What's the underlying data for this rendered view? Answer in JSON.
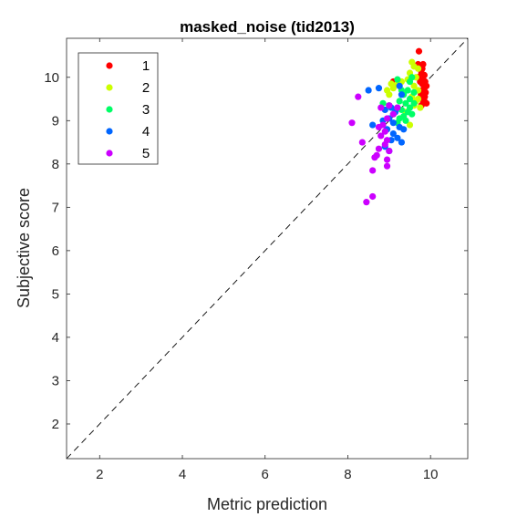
{
  "chart_data": {
    "type": "scatter",
    "title": "masked_noise (tid2013)",
    "xlabel": "Metric prediction",
    "ylabel": "Subjective score",
    "xlim": [
      1.2,
      10.9
    ],
    "ylim": [
      1.2,
      10.9
    ],
    "xticks": [
      2,
      4,
      6,
      8,
      10
    ],
    "yticks": [
      2,
      3,
      4,
      5,
      6,
      7,
      8,
      9,
      10
    ],
    "grid": false,
    "legend_position": "top-left",
    "reference_line": "y = x (dashed)",
    "series": [
      {
        "name": "1",
        "color": "#ff0000",
        "points": [
          [
            9.72,
            10.6
          ],
          [
            9.7,
            10.3
          ],
          [
            9.75,
            10.25
          ],
          [
            9.8,
            10.2
          ],
          [
            9.78,
            10.1
          ],
          [
            9.85,
            10.05
          ],
          [
            9.82,
            9.95
          ],
          [
            9.87,
            9.9
          ],
          [
            9.8,
            9.85
          ],
          [
            9.9,
            9.8
          ],
          [
            9.85,
            9.75
          ],
          [
            9.8,
            9.7
          ],
          [
            9.88,
            9.65
          ],
          [
            9.83,
            9.6
          ],
          [
            9.86,
            9.55
          ],
          [
            9.8,
            9.5
          ],
          [
            9.85,
            9.45
          ],
          [
            9.82,
            9.4
          ],
          [
            9.78,
            9.35
          ],
          [
            9.9,
            9.4
          ],
          [
            9.75,
            9.9
          ],
          [
            9.7,
            10.0
          ],
          [
            9.82,
            10.3
          ],
          [
            9.1,
            9.9
          ],
          [
            9.77,
            9.6
          ]
        ]
      },
      {
        "name": "2",
        "color": "#ccff00",
        "points": [
          [
            9.55,
            10.35
          ],
          [
            9.6,
            10.25
          ],
          [
            9.7,
            10.2
          ],
          [
            9.5,
            10.1
          ],
          [
            9.65,
            10.0
          ],
          [
            9.45,
            9.95
          ],
          [
            9.3,
            9.9
          ],
          [
            9.2,
            9.85
          ],
          [
            9.05,
            9.85
          ],
          [
            9.1,
            9.75
          ],
          [
            8.95,
            9.7
          ],
          [
            9.0,
            9.6
          ],
          [
            9.6,
            9.8
          ],
          [
            9.7,
            9.7
          ],
          [
            9.55,
            9.55
          ],
          [
            9.65,
            9.45
          ],
          [
            9.6,
            9.35
          ],
          [
            9.7,
            9.5
          ],
          [
            9.5,
            8.9
          ],
          [
            9.75,
            9.3
          ],
          [
            9.4,
            9.2
          ]
        ]
      },
      {
        "name": "3",
        "color": "#00ff66",
        "points": [
          [
            9.55,
            10.0
          ],
          [
            9.5,
            9.9
          ],
          [
            9.2,
            9.95
          ],
          [
            9.3,
            9.7
          ],
          [
            9.45,
            9.7
          ],
          [
            9.6,
            9.65
          ],
          [
            9.35,
            9.6
          ],
          [
            9.5,
            9.5
          ],
          [
            9.25,
            9.45
          ],
          [
            9.4,
            9.4
          ],
          [
            9.6,
            9.4
          ],
          [
            9.2,
            9.3
          ],
          [
            9.3,
            9.25
          ],
          [
            9.45,
            9.2
          ],
          [
            9.55,
            9.15
          ],
          [
            9.1,
            9.15
          ],
          [
            9.35,
            9.1
          ],
          [
            9.25,
            9.05
          ],
          [
            9.4,
            9.0
          ],
          [
            8.85,
            9.4
          ],
          [
            9.0,
            9.35
          ],
          [
            9.5,
            9.3
          ],
          [
            9.2,
            8.95
          ]
        ]
      },
      {
        "name": "4",
        "color": "#0066ff",
        "points": [
          [
            8.75,
            9.75
          ],
          [
            8.5,
            9.7
          ],
          [
            9.3,
            9.6
          ],
          [
            9.25,
            9.8
          ],
          [
            9.15,
            9.2
          ],
          [
            9.05,
            9.3
          ],
          [
            8.9,
            9.25
          ],
          [
            9.0,
            9.05
          ],
          [
            8.85,
            9.0
          ],
          [
            9.1,
            8.95
          ],
          [
            8.6,
            8.9
          ],
          [
            9.25,
            8.85
          ],
          [
            9.35,
            8.8
          ],
          [
            8.95,
            8.8
          ],
          [
            9.1,
            8.7
          ],
          [
            9.05,
            8.55
          ],
          [
            9.3,
            8.5
          ],
          [
            8.9,
            8.4
          ],
          [
            9.0,
            8.3
          ],
          [
            9.2,
            8.6
          ]
        ]
      },
      {
        "name": "5",
        "color": "#cc00ff",
        "points": [
          [
            8.25,
            9.55
          ],
          [
            9.0,
            9.35
          ],
          [
            9.2,
            9.3
          ],
          [
            8.8,
            9.3
          ],
          [
            9.1,
            9.15
          ],
          [
            8.95,
            9.05
          ],
          [
            8.1,
            8.95
          ],
          [
            8.85,
            8.9
          ],
          [
            8.75,
            8.85
          ],
          [
            8.9,
            8.75
          ],
          [
            8.8,
            8.65
          ],
          [
            8.95,
            8.55
          ],
          [
            8.9,
            8.45
          ],
          [
            8.35,
            8.5
          ],
          [
            8.75,
            8.35
          ],
          [
            9.0,
            8.3
          ],
          [
            8.7,
            8.2
          ],
          [
            8.65,
            8.15
          ],
          [
            8.95,
            8.1
          ],
          [
            8.95,
            7.95
          ],
          [
            8.6,
            7.85
          ],
          [
            8.6,
            7.25
          ],
          [
            8.45,
            7.12
          ]
        ]
      }
    ]
  }
}
